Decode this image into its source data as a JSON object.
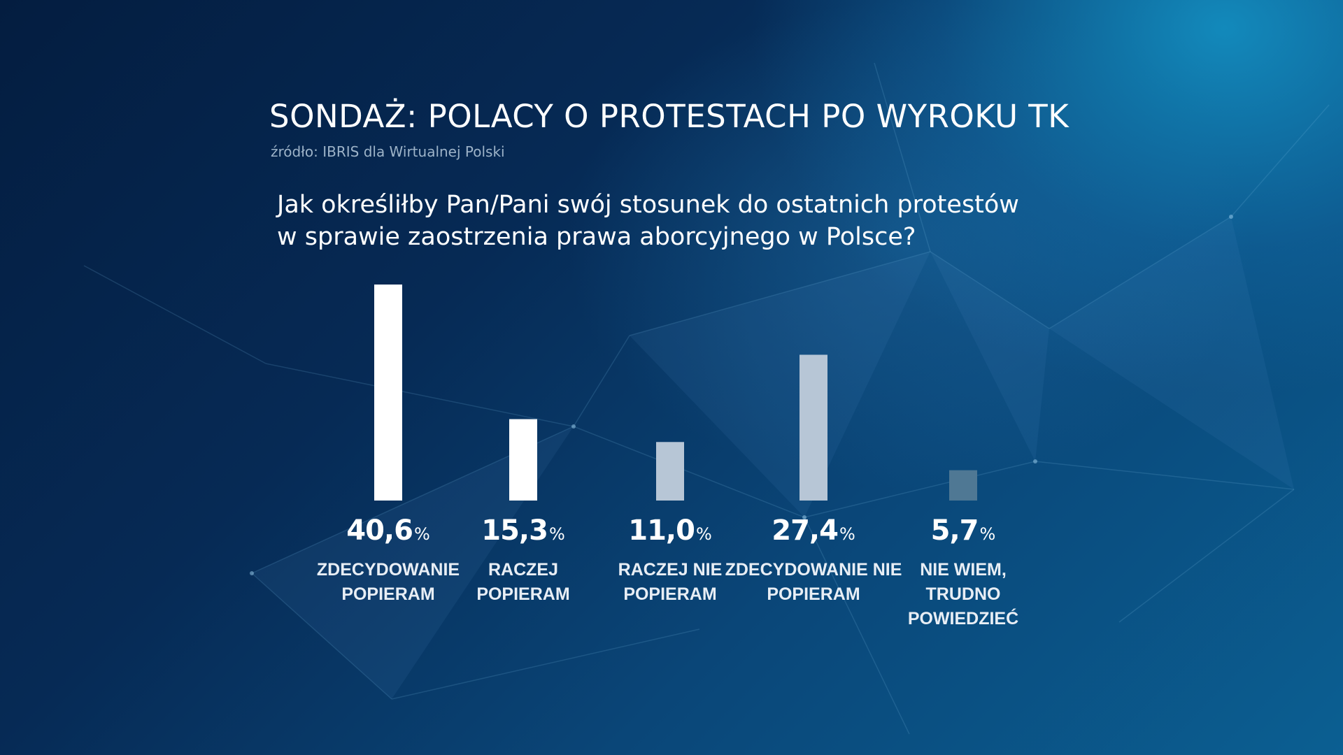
{
  "title": "SONDAŻ: POLACY O PROTESTACH PO WYROKU TK",
  "source": "źródło: IBRIS dla Wirtualnej Polski",
  "question": {
    "line1": "Jak określiłby Pan/Pani swój stosunek do ostatnich protestów",
    "line2": "w sprawie zaostrzenia prawa aborcyjnego w Polsce?"
  },
  "colors": {
    "background": "#06234a",
    "text": "#ffffff",
    "subtle_text": "#9db3c8"
  },
  "chart_data": {
    "type": "bar",
    "categories": [
      "ZDECYDOWANIE\nPOPIERAM",
      "RACZEJ\nPOPIERAM",
      "RACZEJ NIE\nPOPIERAM",
      "ZDECYDOWANIE NIE\nPOPIERAM",
      "NIE WIEM,\nTRUDNO\nPOWIEDZIEĆ"
    ],
    "values": [
      40.6,
      15.3,
      11.0,
      27.4,
      5.7
    ],
    "value_labels": [
      "40,6",
      "15,3",
      "11,0",
      "27,4",
      "5,7"
    ],
    "unit": "%",
    "bar_colors": [
      "#ffffff",
      "#ffffff",
      "#b7c6d6",
      "#b7c6d6",
      "#4f7894"
    ],
    "ylim": [
      0,
      40.6
    ],
    "grid": false,
    "legend": "none"
  }
}
